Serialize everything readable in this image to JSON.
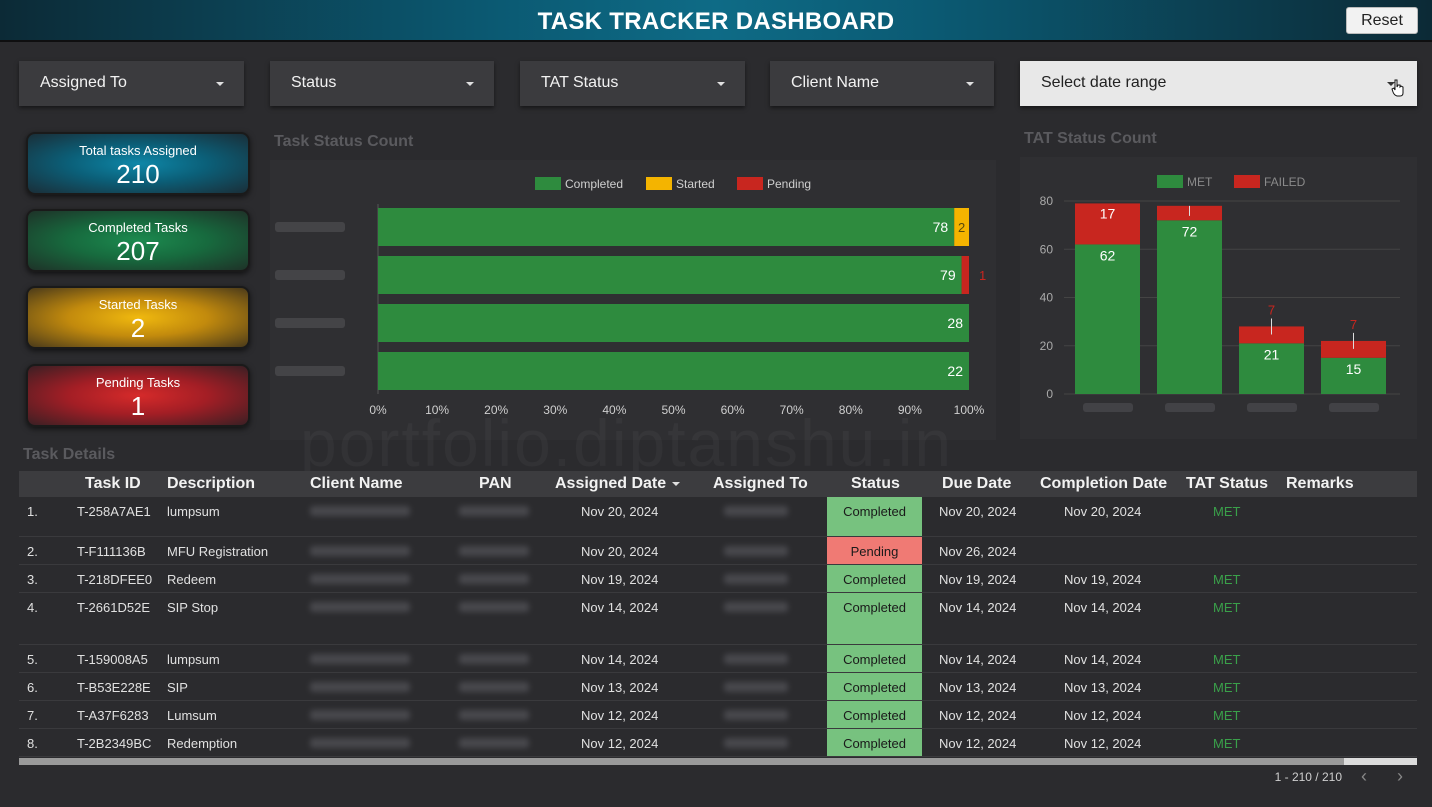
{
  "header": {
    "title": "TASK TRACKER DASHBOARD",
    "reset_label": "Reset"
  },
  "filters": [
    {
      "label": "Assigned To"
    },
    {
      "label": "Status"
    },
    {
      "label": "TAT Status"
    },
    {
      "label": "Client Name"
    },
    {
      "label": "Select date range"
    }
  ],
  "kpis": {
    "total": {
      "label": "Total tasks Assigned",
      "value": "210"
    },
    "completed": {
      "label": "Completed Tasks",
      "value": "207"
    },
    "started": {
      "label": "Started Tasks",
      "value": "2"
    },
    "pending": {
      "label": "Pending Tasks",
      "value": "1"
    }
  },
  "colors": {
    "met": "#2e8b3e",
    "failed": "#c8261f",
    "started": "#f4b400",
    "pending": "#c8261f"
  },
  "chart_data": [
    {
      "type": "bar",
      "orientation": "horizontal-stacked-percent",
      "title": "Task Status Count",
      "legend_position": "top",
      "series": [
        {
          "name": "Completed",
          "values": [
            78,
            79,
            28,
            22
          ]
        },
        {
          "name": "Started",
          "values": [
            2,
            0,
            0,
            0
          ]
        },
        {
          "name": "Pending",
          "values": [
            0,
            1,
            0,
            0
          ]
        }
      ],
      "x_ticks": [
        "0%",
        "10%",
        "20%",
        "30%",
        "40%",
        "50%",
        "60%",
        "70%",
        "80%",
        "90%",
        "100%"
      ],
      "xlim": [
        0,
        100
      ]
    },
    {
      "type": "bar",
      "orientation": "vertical-stacked",
      "title": "TAT Status Count",
      "legend_position": "top",
      "series": [
        {
          "name": "MET",
          "values": [
            62,
            72,
            21,
            15
          ]
        },
        {
          "name": "FAILED",
          "values": [
            17,
            6,
            7,
            7
          ]
        }
      ],
      "segment_labels": [
        {
          "met": "62",
          "failed": "17"
        },
        {
          "met": "72",
          "failed": ""
        },
        {
          "met": "21",
          "failed": "7"
        },
        {
          "met": "15",
          "failed": "7"
        }
      ],
      "y_ticks": [
        "0",
        "20",
        "40",
        "60",
        "80"
      ],
      "ylim": [
        0,
        80
      ],
      "grid": true
    }
  ],
  "table": {
    "title": "Task Details",
    "columns": [
      "Task ID",
      "Description",
      "Client Name",
      "PAN",
      "Assigned Date",
      "Assigned To",
      "Status",
      "Due Date",
      "Completion Date",
      "TAT Status",
      "Remarks"
    ],
    "rows": [
      {
        "n": "1.",
        "id": "T-258A7AE1",
        "desc": "lumpsum",
        "assigned": "Nov 20, 2024",
        "status": "Completed",
        "due": "Nov 20, 2024",
        "completion": "Nov 20, 2024",
        "tat": "MET"
      },
      {
        "n": "2.",
        "id": "T-F111136B",
        "desc": "MFU Registration",
        "assigned": "Nov 20, 2024",
        "status": "Pending",
        "due": "Nov 26, 2024",
        "completion": "",
        "tat": ""
      },
      {
        "n": "3.",
        "id": "T-218DFEE0",
        "desc": "Redeem",
        "assigned": "Nov 19, 2024",
        "status": "Completed",
        "due": "Nov 19, 2024",
        "completion": "Nov 19, 2024",
        "tat": "MET"
      },
      {
        "n": "4.",
        "id": "T-2661D52E",
        "desc": "SIP Stop",
        "assigned": "Nov 14, 2024",
        "status": "Completed",
        "due": "Nov 14, 2024",
        "completion": "Nov 14, 2024",
        "tat": "MET"
      },
      {
        "n": "5.",
        "id": "T-159008A5",
        "desc": "lumpsum",
        "assigned": "Nov 14, 2024",
        "status": "Completed",
        "due": "Nov 14, 2024",
        "completion": "Nov 14, 2024",
        "tat": "MET"
      },
      {
        "n": "6.",
        "id": "T-B53E228E",
        "desc": "SIP",
        "assigned": "Nov 13, 2024",
        "status": "Completed",
        "due": "Nov 13, 2024",
        "completion": "Nov 13, 2024",
        "tat": "MET"
      },
      {
        "n": "7.",
        "id": "T-A37F6283",
        "desc": "Lumsum",
        "assigned": "Nov 12, 2024",
        "status": "Completed",
        "due": "Nov 12, 2024",
        "completion": "Nov 12, 2024",
        "tat": "MET"
      },
      {
        "n": "8.",
        "id": "T-2B2349BC",
        "desc": "Redemption",
        "assigned": "Nov 12, 2024",
        "status": "Completed",
        "due": "Nov 12, 2024",
        "completion": "Nov 12, 2024",
        "tat": "MET"
      }
    ],
    "pagination": "1 - 210 / 210"
  },
  "watermark": "portfolio.diptanshu.in"
}
